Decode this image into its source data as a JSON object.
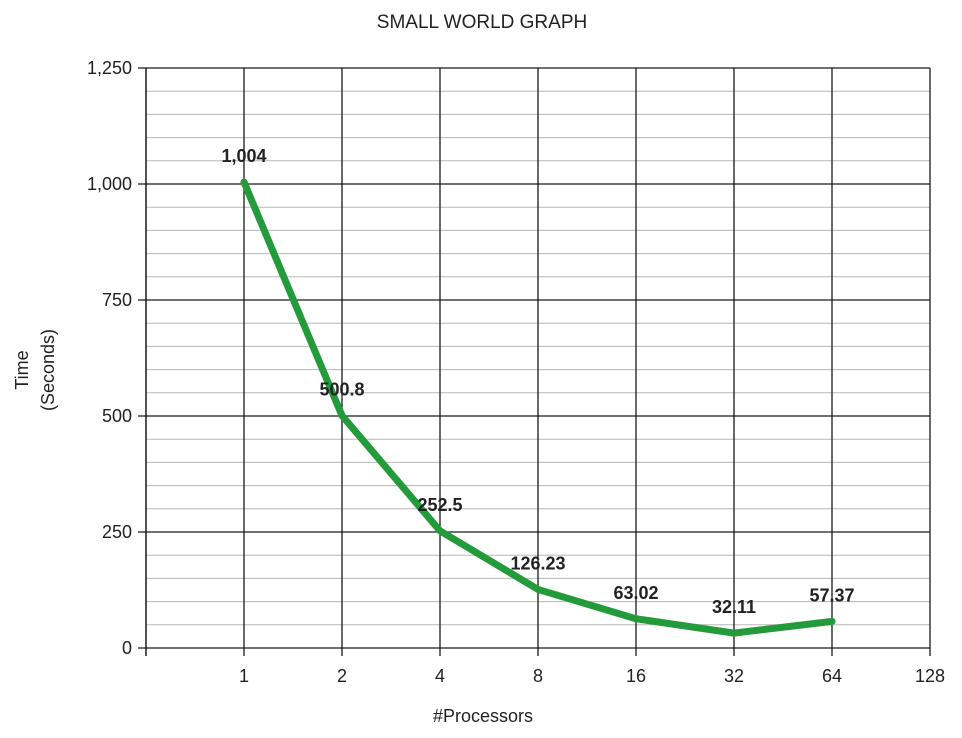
{
  "chart_data": {
    "type": "line",
    "title": "SMALL WORLD GRAPH",
    "xlabel": "#Processors",
    "ylabel_lines": [
      "Time",
      "(Seconds)"
    ],
    "categories": [
      "1",
      "2",
      "4",
      "8",
      "16",
      "32",
      "64",
      "128"
    ],
    "y_ticks": [
      "0",
      "250",
      "500",
      "750",
      "1,000",
      "1,250"
    ],
    "ylim": [
      0,
      1250
    ],
    "y_minor_step": 50,
    "grid": true,
    "legend": "none",
    "series": [
      {
        "color": "#239b3b",
        "x": [
          "1",
          "2",
          "4",
          "8",
          "16",
          "32",
          "64"
        ],
        "values": [
          1004,
          500.8,
          252.5,
          126.23,
          63.02,
          32.11,
          57.37
        ],
        "labels": [
          "1,004",
          "500.8",
          "252.5",
          "126.23",
          "63.02",
          "32.11",
          "57.37"
        ]
      }
    ]
  }
}
